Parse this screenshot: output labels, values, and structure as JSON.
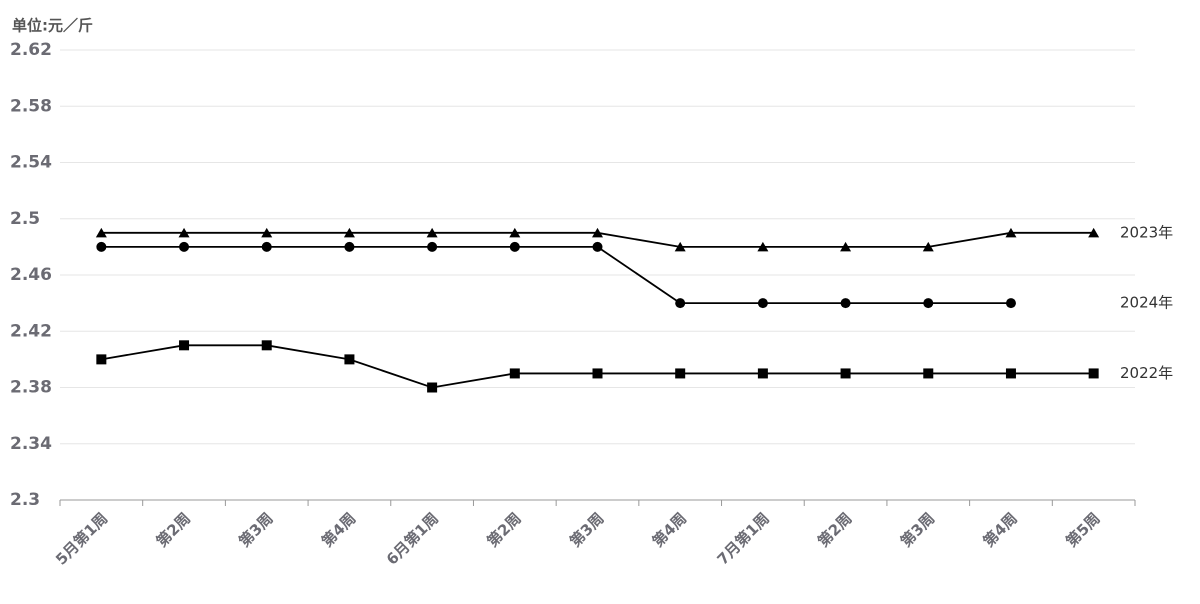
{
  "chart_data": {
    "type": "line",
    "y_axis_label": "单位:元／斤",
    "categories": [
      "5月第1周",
      "第2周",
      "第3周",
      "第4周",
      "6月第1周",
      "第2周",
      "第3周",
      "第4周",
      "7月第1周",
      "第2周",
      "第3周",
      "第4周",
      "第5周"
    ],
    "series": [
      {
        "name": "2023年",
        "color": "#000000",
        "marker": "triangle",
        "values": [
          2.49,
          2.49,
          2.49,
          2.49,
          2.49,
          2.49,
          2.49,
          2.48,
          2.48,
          2.48,
          2.48,
          2.49,
          2.49
        ]
      },
      {
        "name": "2024年",
        "color": "#000000",
        "marker": "circle",
        "values": [
          2.48,
          2.48,
          2.48,
          2.48,
          2.48,
          2.48,
          2.48,
          2.44,
          2.44,
          2.44,
          2.44,
          2.44,
          null
        ]
      },
      {
        "name": "2022年",
        "color": "#000000",
        "marker": "square",
        "values": [
          2.4,
          2.41,
          2.41,
          2.4,
          2.38,
          2.39,
          2.39,
          2.39,
          2.39,
          2.39,
          2.39,
          2.39,
          2.39
        ]
      }
    ],
    "ylim": [
      2.3,
      2.62
    ],
    "yticks": [
      2.3,
      2.34,
      2.38,
      2.42,
      2.46,
      2.5,
      2.54,
      2.58,
      2.62
    ],
    "grid": true
  }
}
